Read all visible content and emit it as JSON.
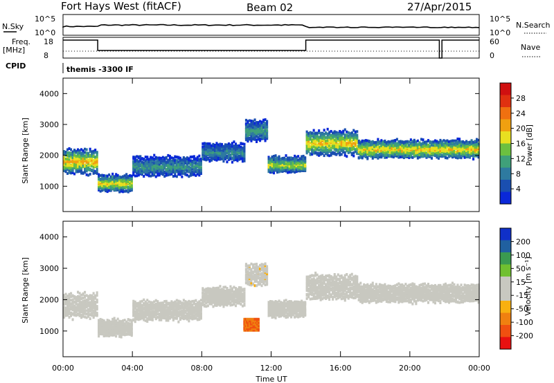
{
  "header": {
    "radar": "Fort Hays West (fitACF)",
    "beam": "Beam 02",
    "date": "27/Apr/2015"
  },
  "top_panels": {
    "nsky_label": "N.Sky",
    "nsky_ticks": [
      "10^5",
      "10^0"
    ],
    "nsearch_label": "N.Search",
    "nsearch_ticks": [
      "10^5",
      "10^0"
    ],
    "freq_label_1": "Freq.",
    "freq_label_2": "[MHz]",
    "freq_ticks": [
      "18",
      "8"
    ],
    "nave_label": "Nave",
    "nave_ticks": [
      "60",
      "0"
    ],
    "cpid_label": "CPID",
    "cpid_value": "themis -3300 IF"
  },
  "colors": {
    "power_scale": [
      "#0a28d8",
      "#1a4fb0",
      "#2e7aa0",
      "#3fa07a",
      "#6cc040",
      "#e8e020",
      "#f0a010",
      "#f07010",
      "#e03010",
      "#d01010"
    ],
    "velocity_scale": [
      "#e81010",
      "#f05010",
      "#f08010",
      "#f8b010",
      "#c8c8c0",
      "#c8c8c0",
      "#70c030",
      "#3a9a50",
      "#2060a0",
      "#1030c8"
    ],
    "gray": "#c8c8c0"
  },
  "chart_data": [
    {
      "type": "heatmap",
      "panel": "power",
      "ylabel": "Slant Range [km]",
      "yticks": [
        "1000",
        "2000",
        "3000",
        "4000"
      ],
      "ylim": [
        180,
        4500
      ],
      "xlim": [
        0,
        24
      ],
      "colorbar_label": "Power [dB]",
      "colorbar_ticks": [
        "4",
        "8",
        "12",
        "16",
        "20",
        "24",
        "28"
      ],
      "colorbar_range": [
        0,
        30
      ],
      "bands": [
        {
          "t0": 0.0,
          "t1": 2.0,
          "center": 1800,
          "width": 700,
          "value": 20
        },
        {
          "t0": 2.0,
          "t1": 4.0,
          "center": 1100,
          "width": 450,
          "value": 18
        },
        {
          "t0": 4.0,
          "t1": 8.0,
          "center": 1650,
          "width": 550,
          "value": 10
        },
        {
          "t0": 8.0,
          "t1": 10.5,
          "center": 2100,
          "width": 500,
          "value": 9
        },
        {
          "t0": 10.5,
          "t1": 11.8,
          "center": 2800,
          "width": 600,
          "value": 11
        },
        {
          "t0": 11.8,
          "t1": 14.0,
          "center": 1700,
          "width": 450,
          "value": 16
        },
        {
          "t0": 14.0,
          "t1": 17.0,
          "center": 2400,
          "width": 700,
          "value": 19
        },
        {
          "t0": 17.0,
          "t1": 24.0,
          "center": 2200,
          "width": 500,
          "value": 19
        }
      ]
    },
    {
      "type": "heatmap",
      "panel": "velocity",
      "ylabel": "Slant Range [km]",
      "yticks": [
        "1000",
        "2000",
        "3000",
        "4000"
      ],
      "ylim": [
        180,
        4500
      ],
      "xlim": [
        0,
        24
      ],
      "xlabel": "Time UT",
      "xticks": [
        "00:00",
        "04:00",
        "08:00",
        "12:00",
        "16:00",
        "20:00",
        "00:00"
      ],
      "colorbar_label": "Velocity [m s⁻¹]",
      "colorbar_ticks": [
        "-200",
        "-100",
        "-50",
        "-15",
        "15",
        "50",
        "100",
        "200"
      ],
      "colorbar_range": [
        -250,
        250
      ],
      "bands": [
        {
          "t0": 0.0,
          "t1": 2.0,
          "center": 1800,
          "width": 700,
          "value": 0
        },
        {
          "t0": 2.0,
          "t1": 4.0,
          "center": 1100,
          "width": 450,
          "value": -20
        },
        {
          "t0": 4.0,
          "t1": 8.0,
          "center": 1650,
          "width": 550,
          "value": -30
        },
        {
          "t0": 8.0,
          "t1": 10.5,
          "center": 2100,
          "width": 500,
          "value": -40
        },
        {
          "t0": 10.5,
          "t1": 11.8,
          "center": 2800,
          "width": 600,
          "value": -45
        },
        {
          "t0": 11.8,
          "t1": 14.0,
          "center": 1700,
          "width": 450,
          "value": 30
        },
        {
          "t0": 14.0,
          "t1": 17.0,
          "center": 2400,
          "width": 700,
          "value": 0
        },
        {
          "t0": 17.0,
          "t1": 24.0,
          "center": 2200,
          "width": 500,
          "value": 0
        }
      ],
      "patches": [
        {
          "t0": 10.4,
          "t1": 11.3,
          "center": 1200,
          "width": 350,
          "value": -150
        }
      ]
    }
  ]
}
